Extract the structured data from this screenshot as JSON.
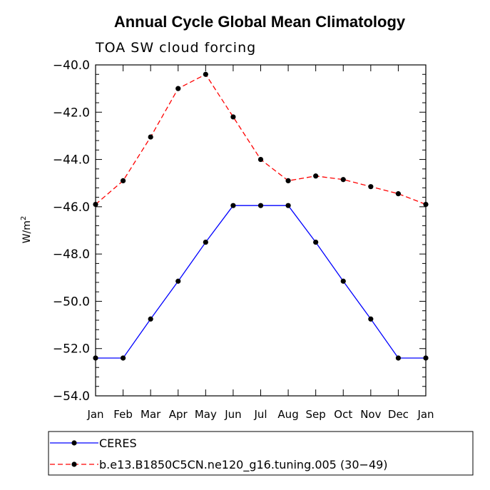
{
  "chart_data": {
    "type": "line",
    "title": "Annual Cycle Global Mean Climatology",
    "subtitle": "TOA SW cloud forcing",
    "ylabel": "W/m",
    "ylabel_superscript": "2",
    "ylim": [
      -54.0,
      -40.0
    ],
    "yticks": [
      "−40.0",
      "−42.0",
      "−44.0",
      "−46.0",
      "−48.0",
      "−50.0",
      "−52.0",
      "−54.0"
    ],
    "ytick_values": [
      -40,
      -42,
      -44,
      -46,
      -48,
      -50,
      -52,
      -54
    ],
    "categories": [
      "Jan",
      "Feb",
      "Mar",
      "Apr",
      "May",
      "Jun",
      "Jul",
      "Aug",
      "Sep",
      "Oct",
      "Nov",
      "Dec",
      "Jan"
    ],
    "series": [
      {
        "name": "CERES",
        "color": "#0000ff",
        "dash": "solid",
        "values": [
          -52.4,
          -52.4,
          -50.75,
          -49.15,
          -47.5,
          -45.95,
          -45.95,
          -45.95,
          -47.5,
          -49.15,
          -50.75,
          -52.4,
          -52.4
        ]
      },
      {
        "name": "b.e13.B1850C5CN.ne120_g16.tuning.005 (30−49)",
        "color": "#ff0000",
        "dash": "dashed",
        "values": [
          -45.9,
          -44.9,
          -43.05,
          -41.0,
          -40.4,
          -42.2,
          -44.0,
          -44.9,
          -44.7,
          -44.85,
          -45.15,
          -45.45,
          -45.9
        ]
      }
    ],
    "legend_position": "bottom-left"
  }
}
